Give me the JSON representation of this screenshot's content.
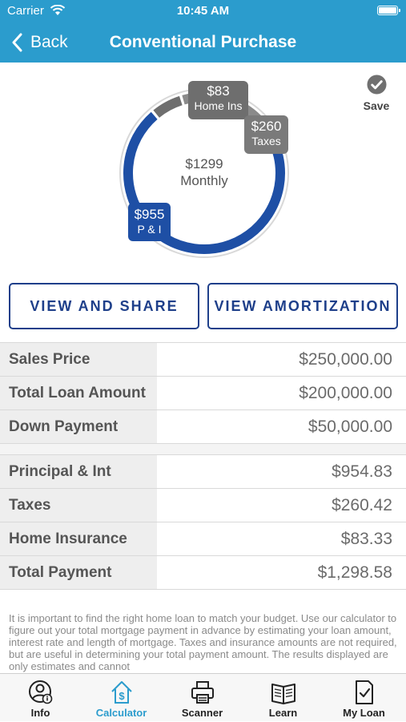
{
  "status_bar": {
    "carrier": "Carrier",
    "time": "10:45 AM"
  },
  "nav": {
    "back_label": "Back",
    "title": "Conventional Purchase"
  },
  "save_label": "Save",
  "chart_data": {
    "type": "pie",
    "center_value": "$1299",
    "center_label": "Monthly",
    "slices": [
      {
        "value_label": "$955",
        "label": "P & I",
        "value": 954.83,
        "color": "#1e4fa5"
      },
      {
        "value_label": "$83",
        "label": "Home Ins",
        "value": 83.33,
        "color": "#6e6e6e"
      },
      {
        "value_label": "$260",
        "label": "Taxes",
        "value": 260.42,
        "color": "#8a8a8a"
      }
    ]
  },
  "buttons": {
    "share": "VIEW AND SHARE",
    "amortization": "VIEW AMORTIZATION"
  },
  "loan_table": [
    {
      "label": "Sales Price",
      "value": "$250,000.00"
    },
    {
      "label": "Total Loan Amount",
      "value": "$200,000.00"
    },
    {
      "label": "Down Payment",
      "value": "$50,000.00"
    }
  ],
  "payment_table": [
    {
      "label": "Principal & Int",
      "value": "$954.83"
    },
    {
      "label": "Taxes",
      "value": "$260.42"
    },
    {
      "label": "Home Insurance",
      "value": "$83.33"
    },
    {
      "label": "Total Payment",
      "value": "$1,298.58"
    }
  ],
  "disclaimer": "It is important to find the right home loan to match your budget. Use our calculator to figure out your total mortgage payment in advance by estimating your loan amount, interest rate and length of mortgage. Taxes and insurance amounts are not required, but are useful in determining your total payment amount.  The results displayed are only estimates and cannot",
  "tabs": [
    {
      "label": "Info",
      "icon": "info-user-icon"
    },
    {
      "label": "Calculator",
      "icon": "calculator-house-icon",
      "active": true
    },
    {
      "label": "Scanner",
      "icon": "printer-icon"
    },
    {
      "label": "Learn",
      "icon": "book-icon"
    },
    {
      "label": "My Loan",
      "icon": "document-check-icon"
    }
  ],
  "colors": {
    "header": "#2b9ccd",
    "accent": "#1e3f8a",
    "pi": "#1e4fa5"
  }
}
